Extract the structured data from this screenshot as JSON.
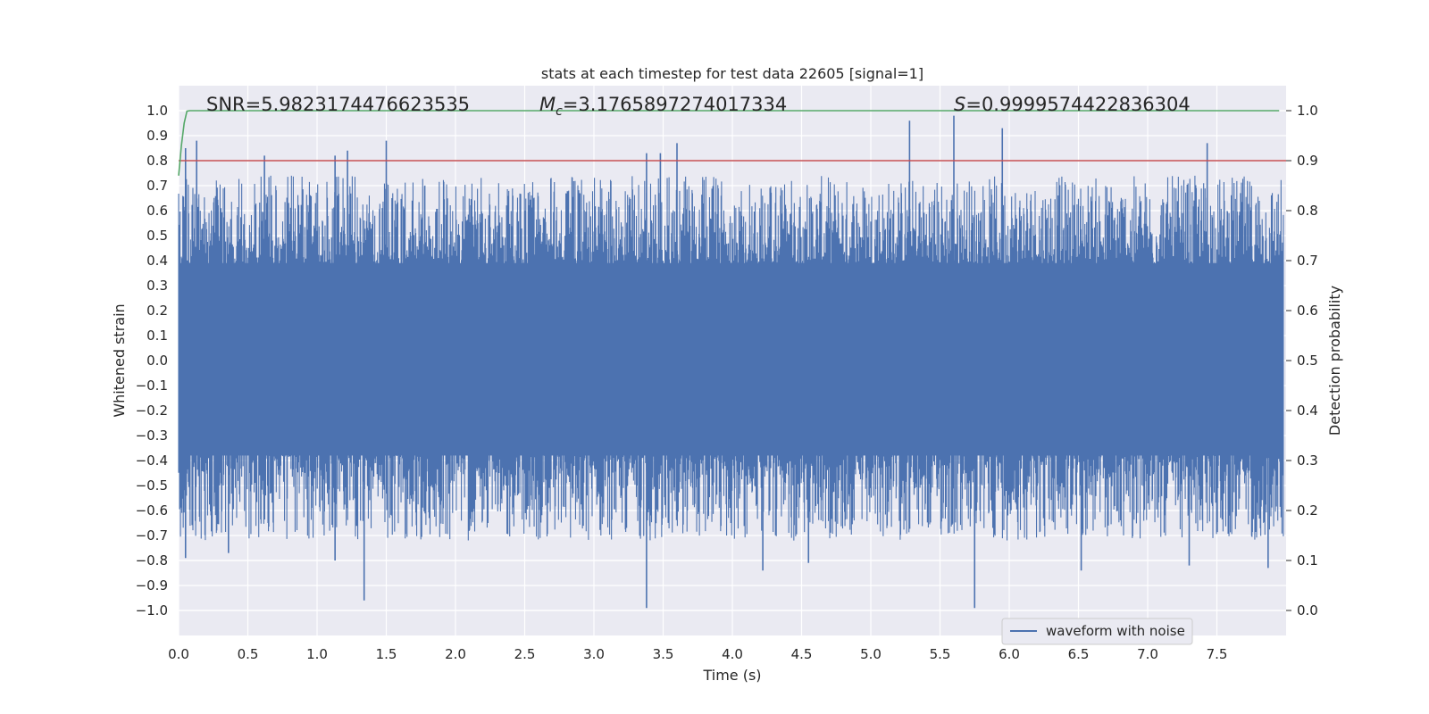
{
  "chart_data": {
    "type": "line",
    "title": "stats at each timestep for test data 22605 [signal=1]",
    "xlabel": "Time (s)",
    "ylabel": "Whitened strain",
    "y2label": "Detection probability",
    "xlim": [
      0.0,
      8.0
    ],
    "ylim": [
      -1.1,
      1.1
    ],
    "y2lim": [
      -0.05,
      1.05
    ],
    "xticks": [
      "0.0",
      "0.5",
      "1.0",
      "1.5",
      "2.0",
      "2.5",
      "3.0",
      "3.5",
      "4.0",
      "4.5",
      "5.0",
      "5.5",
      "6.0",
      "6.5",
      "7.0",
      "7.5"
    ],
    "yticks": [
      "1.0",
      "0.9",
      "0.8",
      "0.7",
      "0.6",
      "0.5",
      "0.4",
      "0.3",
      "0.2",
      "0.1",
      "0.0",
      "−0.1",
      "−0.2",
      "−0.3",
      "−0.4",
      "−0.5",
      "−0.6",
      "−0.7",
      "−0.8",
      "−0.9",
      "−1.0"
    ],
    "y2ticks": [
      "1.0",
      "0.9",
      "0.8",
      "0.7",
      "0.6",
      "0.5",
      "0.4",
      "0.3",
      "0.2",
      "0.1",
      "0.0"
    ],
    "annotations": {
      "snr": "SNR=5.9823174476623535",
      "mc_symbol": "M",
      "mc_subscript": "c",
      "mc_value": "=3.1765897274017334",
      "s_symbol": "S",
      "s_value": "=0.9999574422836304"
    },
    "legend": {
      "label": "waveform with noise",
      "position": "lower right"
    },
    "series": [
      {
        "name": "waveform with noise",
        "axis": "left",
        "color": "#4c72b0",
        "description": "dense noisy strain, amplitude roughly between -1.0 and 1.0 over 0 to 8 s",
        "x_range": [
          0.0,
          7.98
        ],
        "peaks": [
          {
            "x": 0.05,
            "y": 0.85
          },
          {
            "x": 0.13,
            "y": 0.88
          },
          {
            "x": 0.62,
            "y": 0.82
          },
          {
            "x": 1.13,
            "y": 0.82
          },
          {
            "x": 1.22,
            "y": 0.84
          },
          {
            "x": 1.5,
            "y": 0.88
          },
          {
            "x": 3.38,
            "y": 0.83
          },
          {
            "x": 3.48,
            "y": 0.83
          },
          {
            "x": 3.6,
            "y": 0.87
          },
          {
            "x": 5.28,
            "y": 0.96
          },
          {
            "x": 5.6,
            "y": 0.98
          },
          {
            "x": 5.95,
            "y": 0.93
          },
          {
            "x": 7.43,
            "y": 0.87
          }
        ],
        "troughs": [
          {
            "x": 0.05,
            "y": -0.79
          },
          {
            "x": 0.36,
            "y": -0.77
          },
          {
            "x": 1.13,
            "y": -0.8
          },
          {
            "x": 1.34,
            "y": -0.96
          },
          {
            "x": 3.38,
            "y": -0.99
          },
          {
            "x": 4.22,
            "y": -0.84
          },
          {
            "x": 4.55,
            "y": -0.81
          },
          {
            "x": 5.75,
            "y": -0.99
          },
          {
            "x": 6.52,
            "y": -0.84
          },
          {
            "x": 7.3,
            "y": -0.82
          },
          {
            "x": 7.87,
            "y": -0.83
          }
        ]
      },
      {
        "name": "detection probability",
        "axis": "right",
        "color": "#55a868",
        "x": [
          0.0,
          0.02,
          0.04,
          0.06,
          0.08,
          7.95
        ],
        "y": [
          0.87,
          0.93,
          0.975,
          0.999,
          1.0,
          1.0
        ]
      },
      {
        "name": "threshold",
        "axis": "right",
        "color": "#c44e52",
        "x": [
          0.0,
          8.0
        ],
        "y": [
          0.9,
          0.9
        ]
      }
    ]
  }
}
